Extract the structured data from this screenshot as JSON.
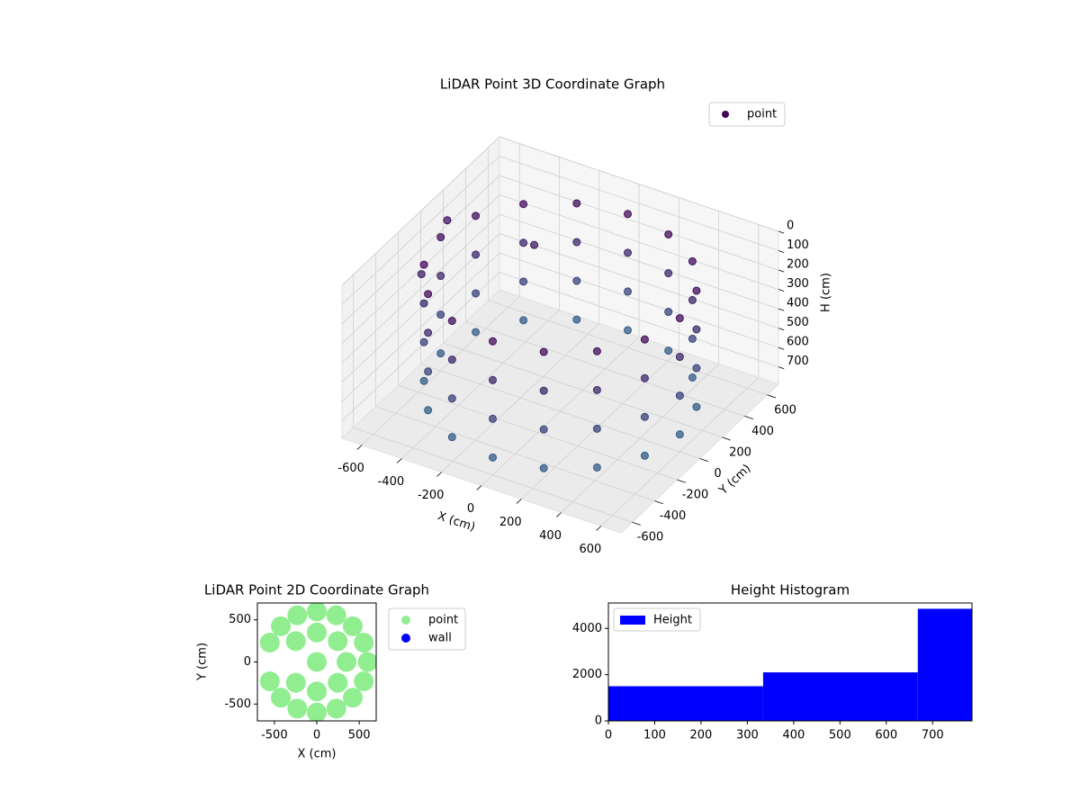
{
  "chart_data": [
    {
      "type": "scatter3d",
      "title": "LiDAR Point 3D Coordinate Graph",
      "xlabel": "X (cm)",
      "ylabel": "Y (cm)",
      "zlabel": "H (cm)",
      "xlim": [
        -700,
        700
      ],
      "xticks": [
        -600,
        -400,
        -200,
        0,
        200,
        400,
        600
      ],
      "ylim": [
        -700,
        700
      ],
      "yticks": [
        -600,
        -400,
        -200,
        0,
        200,
        400,
        600
      ],
      "zlim": [
        0,
        790
      ],
      "zticks": [
        0,
        100,
        200,
        300,
        400,
        500,
        600,
        700
      ],
      "z_inverted": true,
      "grid": true,
      "legend": "upper right",
      "colormap": [
        "#440154",
        "#31688e"
      ],
      "series": [
        {
          "name": "point",
          "x": [
            600,
            554,
            424,
            230,
            0,
            -230,
            -424,
            -554,
            -600,
            -554,
            -424,
            -230,
            0,
            230,
            424,
            554,
            600,
            554,
            424,
            230,
            0,
            -230,
            -424,
            -554,
            -600,
            -554,
            -424,
            -230,
            0,
            230,
            424,
            554,
            600,
            554,
            424,
            230,
            0,
            -230,
            -424,
            -554,
            -600,
            -554,
            -424,
            -230,
            0,
            230,
            424,
            554,
            600,
            554,
            424,
            230,
            0,
            -230,
            -424,
            -554,
            -600,
            -554,
            -424,
            -230,
            0,
            230,
            424,
            554,
            -680,
            -640,
            -300
          ],
          "y": [
            0,
            230,
            424,
            554,
            600,
            554,
            424,
            230,
            0,
            -230,
            -424,
            -554,
            -600,
            -554,
            -424,
            -230,
            0,
            230,
            424,
            554,
            600,
            554,
            424,
            230,
            0,
            -230,
            -424,
            -554,
            -600,
            -554,
            -424,
            -230,
            0,
            230,
            424,
            554,
            600,
            554,
            424,
            230,
            0,
            -230,
            -424,
            -554,
            -600,
            -554,
            -424,
            -230,
            0,
            230,
            424,
            554,
            600,
            554,
            424,
            230,
            0,
            -230,
            -424,
            -554,
            -600,
            -554,
            -424,
            -230,
            200,
            -100,
            300
          ],
          "z": [
            100,
            100,
            100,
            100,
            100,
            100,
            100,
            100,
            100,
            100,
            100,
            100,
            100,
            100,
            100,
            100,
            300,
            300,
            300,
            300,
            300,
            300,
            300,
            300,
            300,
            300,
            300,
            300,
            300,
            300,
            300,
            300,
            500,
            500,
            500,
            500,
            500,
            500,
            500,
            500,
            500,
            500,
            500,
            500,
            500,
            500,
            500,
            500,
            700,
            700,
            700,
            700,
            700,
            700,
            700,
            700,
            700,
            700,
            700,
            700,
            700,
            700,
            700,
            700,
            150,
            250,
            200
          ]
        }
      ]
    },
    {
      "type": "scatter",
      "title": "LiDAR Point 2D Coordinate Graph",
      "xlabel": "X (cm)",
      "ylabel": "Y (cm)",
      "xlim": [
        -700,
        700
      ],
      "xticks": [
        -500,
        0,
        500
      ],
      "ylim": [
        -700,
        700
      ],
      "yticks": [
        -500,
        0,
        500
      ],
      "legend": "outside right",
      "series": [
        {
          "name": "point",
          "color": "#90ee90",
          "x": [
            600,
            554,
            424,
            230,
            0,
            -230,
            -424,
            -554,
            -554,
            -424,
            -230,
            0,
            230,
            424,
            554,
            350,
            247,
            0,
            -247,
            -247,
            0,
            247,
            0
          ],
          "y": [
            0,
            230,
            424,
            554,
            600,
            554,
            424,
            230,
            -230,
            -424,
            -554,
            -600,
            -554,
            -424,
            -230,
            0,
            247,
            350,
            247,
            -247,
            -350,
            -247,
            0
          ]
        },
        {
          "name": "wall",
          "color": "#0000ff",
          "x": [],
          "y": []
        }
      ]
    },
    {
      "type": "histogram",
      "title": "Height Histogram",
      "xlim": [
        0,
        785
      ],
      "xticks": [
        0,
        100,
        200,
        300,
        400,
        500,
        600,
        700
      ],
      "ylim": [
        0,
        5100
      ],
      "yticks": [
        0,
        2000,
        4000
      ],
      "legend": "upper left",
      "series": [
        {
          "name": "Height",
          "color": "#0000ff",
          "bins": [
            0,
            334,
            668,
            785
          ],
          "values": [
            1500,
            2100,
            4850
          ]
        }
      ]
    }
  ]
}
